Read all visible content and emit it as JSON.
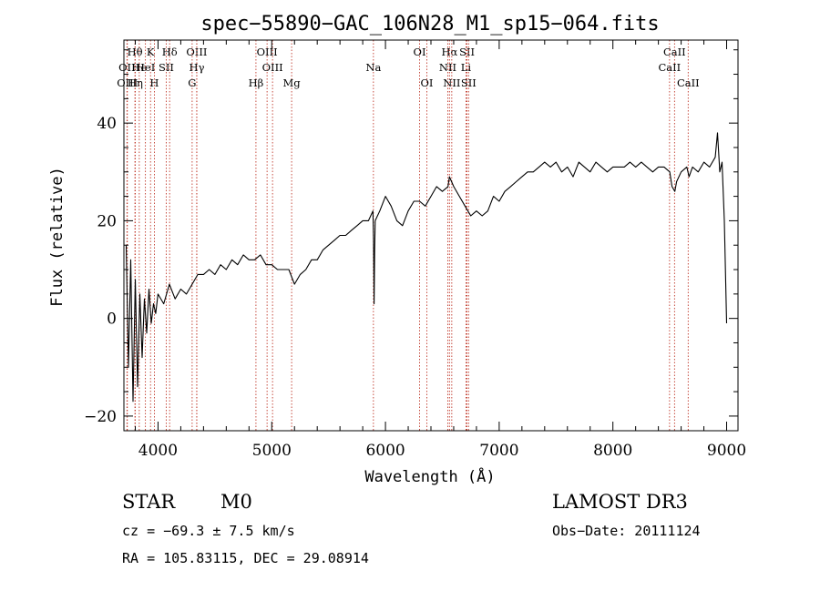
{
  "chart_data": {
    "type": "line",
    "title": "spec−55890−GAC_106N28_M1_sp15−064.fits",
    "xlabel": "Wavelength (Å)",
    "ylabel": "Flux (relative)",
    "xlim": [
      3700,
      9100
    ],
    "ylim": [
      -23,
      57
    ],
    "xticks": [
      4000,
      5000,
      6000,
      7000,
      8000,
      9000
    ],
    "xtick_labels": [
      "4000",
      "5000",
      "6000",
      "7000",
      "8000",
      "9000"
    ],
    "yticks": [
      -20,
      0,
      20,
      40
    ],
    "ytick_labels": [
      "−20",
      "0",
      "20",
      "40"
    ],
    "xminor_step": 200,
    "yminor_step": 5,
    "grid": false,
    "series": [
      {
        "name": "spectrum",
        "color": "#000000",
        "x": [
          3720,
          3740,
          3760,
          3780,
          3800,
          3820,
          3840,
          3860,
          3880,
          3900,
          3920,
          3940,
          3960,
          3980,
          4000,
          4050,
          4100,
          4150,
          4200,
          4250,
          4300,
          4350,
          4400,
          4450,
          4500,
          4550,
          4600,
          4650,
          4700,
          4750,
          4800,
          4850,
          4900,
          4950,
          5000,
          5050,
          5100,
          5150,
          5200,
          5250,
          5300,
          5350,
          5400,
          5450,
          5500,
          5550,
          5600,
          5650,
          5700,
          5750,
          5800,
          5850,
          5890,
          5895,
          5900,
          5905,
          5910,
          5950,
          6000,
          6050,
          6100,
          6150,
          6200,
          6250,
          6300,
          6350,
          6400,
          6450,
          6500,
          6550,
          6563,
          6600,
          6650,
          6700,
          6750,
          6800,
          6850,
          6900,
          6950,
          7000,
          7050,
          7100,
          7150,
          7200,
          7250,
          7300,
          7350,
          7400,
          7450,
          7500,
          7550,
          7600,
          7650,
          7700,
          7750,
          7800,
          7850,
          7900,
          7950,
          8000,
          8050,
          8100,
          8150,
          8200,
          8250,
          8300,
          8350,
          8400,
          8450,
          8500,
          8520,
          8545,
          8560,
          8600,
          8650,
          8670,
          8700,
          8750,
          8800,
          8850,
          8900,
          8920,
          8940,
          8960,
          8980,
          9000
        ],
        "y": [
          15,
          -10,
          12,
          -17,
          8,
          -14,
          5,
          -8,
          4,
          -3,
          6,
          -1,
          3,
          1,
          5,
          3,
          7,
          4,
          6,
          5,
          7,
          9,
          9,
          10,
          9,
          11,
          10,
          12,
          11,
          13,
          12,
          12,
          13,
          11,
          11,
          10,
          10,
          10,
          7,
          9,
          10,
          12,
          12,
          14,
          15,
          16,
          17,
          17,
          18,
          19,
          20,
          20,
          22,
          16,
          3,
          14,
          20,
          22,
          25,
          23,
          20,
          19,
          22,
          24,
          24,
          23,
          25,
          27,
          26,
          27,
          29,
          27,
          25,
          23,
          21,
          22,
          21,
          22,
          25,
          24,
          26,
          27,
          28,
          29,
          30,
          30,
          31,
          32,
          31,
          32,
          30,
          31,
          29,
          32,
          31,
          30,
          32,
          31,
          30,
          31,
          31,
          31,
          32,
          31,
          32,
          31,
          30,
          31,
          31,
          30,
          27,
          26,
          28,
          30,
          31,
          29,
          31,
          30,
          32,
          31,
          33,
          38,
          30,
          32,
          20,
          -1
        ]
      }
    ],
    "line_markers": [
      {
        "label": "Hθ",
        "x": 3797,
        "row": 0
      },
      {
        "label": "OII",
        "x": 3727,
        "row": 1
      },
      {
        "label": "OIII",
        "x": 3730,
        "row": 2
      },
      {
        "label": "He",
        "x": 3835,
        "row": 1
      },
      {
        "label": "Hη",
        "x": 3800,
        "row": 2
      },
      {
        "label": "K",
        "x": 3934,
        "row": 0
      },
      {
        "label": "HeI",
        "x": 3889,
        "row": 1
      },
      {
        "label": "H",
        "x": 3968,
        "row": 2
      },
      {
        "label": "SII",
        "x": 4072,
        "row": 1
      },
      {
        "label": "Hδ",
        "x": 4102,
        "row": 0
      },
      {
        "label": "OIII",
        "x": 4340,
        "row": 0
      },
      {
        "label": "Hγ",
        "x": 4341,
        "row": 1
      },
      {
        "label": "G",
        "x": 4300,
        "row": 2
      },
      {
        "label": "Hβ",
        "x": 4861,
        "row": 2
      },
      {
        "label": "OIII",
        "x": 4959,
        "row": 0
      },
      {
        "label": "OIII",
        "x": 5007,
        "row": 1
      },
      {
        "label": "Mg",
        "x": 5175,
        "row": 2
      },
      {
        "label": "Na",
        "x": 5894,
        "row": 1
      },
      {
        "label": "OI",
        "x": 6300,
        "row": 0
      },
      {
        "label": "OI",
        "x": 6364,
        "row": 2
      },
      {
        "label": "Hα",
        "x": 6563,
        "row": 0
      },
      {
        "label": "NII",
        "x": 6548,
        "row": 1
      },
      {
        "label": "NII",
        "x": 6583,
        "row": 2
      },
      {
        "label": "SII",
        "x": 6717,
        "row": 0
      },
      {
        "label": "Li",
        "x": 6708,
        "row": 1
      },
      {
        "label": "SII",
        "x": 6731,
        "row": 2
      },
      {
        "label": "CaII",
        "x": 8542,
        "row": 0
      },
      {
        "label": "CaII",
        "x": 8498,
        "row": 1
      },
      {
        "label": "CaII",
        "x": 8662,
        "row": 2
      }
    ]
  },
  "info": {
    "class": "STAR",
    "subclass": "M0",
    "survey": "LAMOST DR3",
    "redshift": "cz = −69.3 ± 7.5 km/s",
    "obs_date": "Obs−Date: 20111124",
    "coordinates": "RA = 105.83115, DEC =  29.08914"
  }
}
